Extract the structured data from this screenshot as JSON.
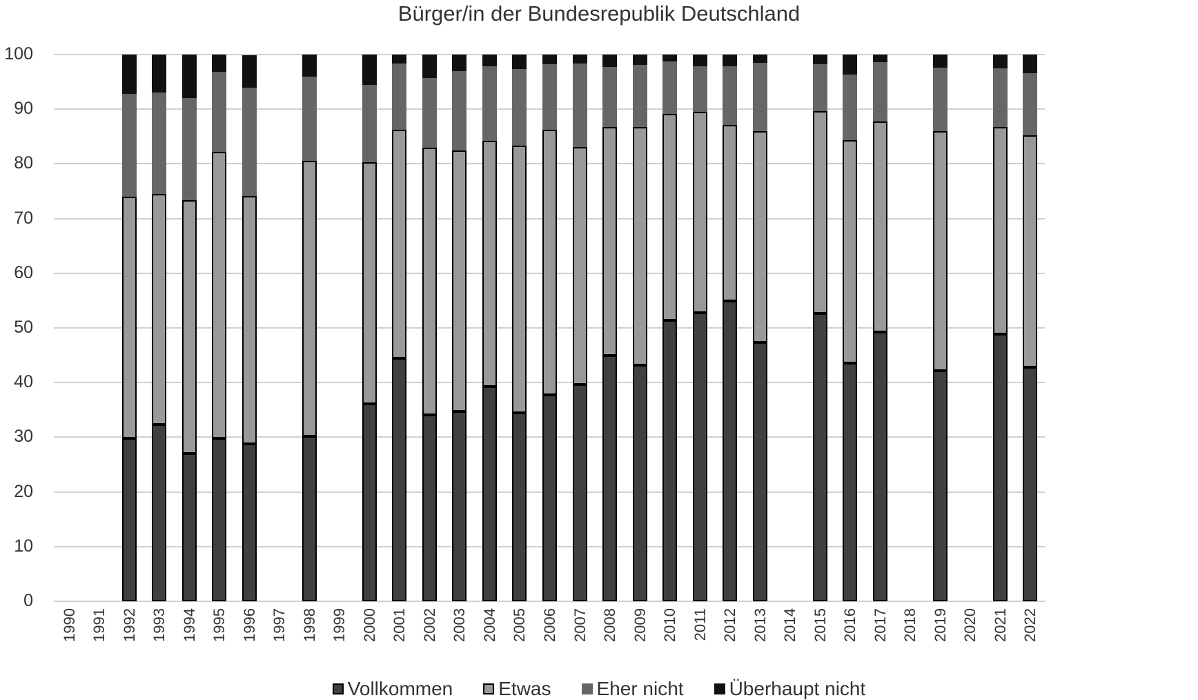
{
  "chart_data": {
    "type": "bar",
    "stacked": true,
    "title": "Bürger/in der Bundesrepublik Deutschland",
    "xlabel": "",
    "ylabel": "",
    "ylim": [
      0,
      100
    ],
    "yticks": [
      0,
      10,
      20,
      30,
      40,
      50,
      60,
      70,
      80,
      90,
      100
    ],
    "grid": true,
    "legend_position": "bottom",
    "categories": [
      "1990",
      "1991",
      "1992",
      "1993",
      "1994",
      "1995",
      "1996",
      "1997",
      "1998",
      "1999",
      "2000",
      "2001",
      "2002",
      "2003",
      "2004",
      "2005",
      "2006",
      "2007",
      "2008",
      "2009",
      "2010",
      "2011",
      "2012",
      "2013",
      "2014",
      "2015",
      "2016",
      "2017",
      "2018",
      "2019",
      "2020",
      "2021",
      "2022"
    ],
    "series": [
      {
        "name": "Vollkommen",
        "color": "#404040",
        "values": [
          null,
          null,
          29.8,
          32.3,
          27,
          29.8,
          28.8,
          null,
          30.2,
          null,
          36.1,
          44.5,
          34.1,
          34.7,
          39.3,
          34.5,
          37.8,
          39.7,
          45,
          43.2,
          51.4,
          52.8,
          54.9,
          47.3,
          null,
          52.7,
          43.6,
          49.2,
          null,
          42.2,
          null,
          48.9,
          42.8
        ]
      },
      {
        "name": "Etwas",
        "color": "#999999",
        "values": [
          null,
          null,
          44.2,
          42.2,
          46.4,
          52.4,
          45.3,
          null,
          50.4,
          null,
          44.2,
          41.8,
          48.8,
          47.8,
          44.9,
          48.8,
          48.4,
          43.4,
          41.8,
          43.6,
          37.8,
          36.7,
          32.2,
          38.7,
          null,
          36.9,
          40.7,
          38.6,
          null,
          43.8,
          null,
          37.9,
          42.4
        ]
      },
      {
        "name": "Eher nicht",
        "color": "#666666",
        "values": [
          null,
          null,
          18.8,
          18.5,
          18.6,
          14.6,
          19.9,
          null,
          15.3,
          null,
          14.1,
          12,
          12.8,
          14.5,
          13.7,
          14,
          12,
          15.2,
          10.9,
          11.3,
          9.5,
          8.4,
          10.7,
          12.5,
          null,
          8.6,
          12,
          10.8,
          null,
          11.6,
          null,
          10.7,
          11.4
        ]
      },
      {
        "name": "Überhaupt nicht",
        "color": "#111111",
        "values": [
          null,
          null,
          7.2,
          7,
          8,
          3.2,
          5.9,
          null,
          4.1,
          null,
          5.6,
          1.7,
          4.3,
          3,
          2.1,
          2.7,
          1.8,
          1.7,
          2.3,
          1.9,
          1.3,
          2.1,
          2.2,
          1.5,
          null,
          1.8,
          3.7,
          1.4,
          null,
          2.4,
          null,
          2.5,
          3.4
        ]
      }
    ]
  },
  "legend": {
    "items": [
      {
        "label": "Vollkommen",
        "color": "#404040"
      },
      {
        "label": "Etwas",
        "color": "#999999"
      },
      {
        "label": "Eher nicht",
        "color": "#666666"
      },
      {
        "label": "Überhaupt nicht",
        "color": "#111111"
      }
    ]
  }
}
